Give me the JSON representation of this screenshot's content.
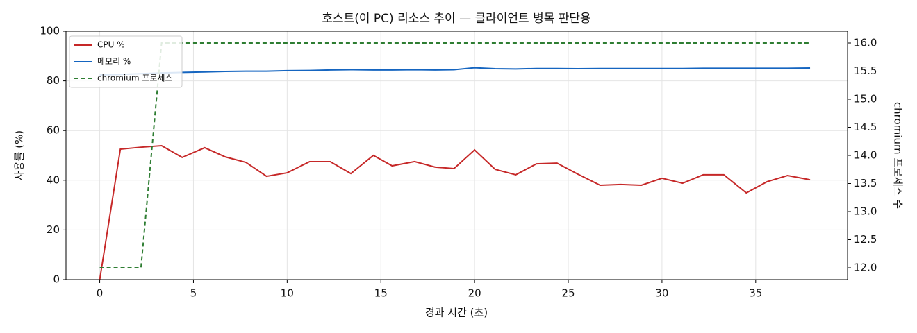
{
  "chart_data": {
    "type": "line",
    "title": "호스트(이 PC) 리소스 추이 — 클라이언트 병목 판단용",
    "xlabel": "경과 시간 (초)",
    "ylabel": "사용률 (%)",
    "y2label": "chromium 프로세스 수",
    "x": [
      0,
      1.1,
      2.2,
      3.3,
      4.4,
      5.6,
      6.7,
      7.8,
      8.9,
      10.0,
      11.2,
      12.3,
      13.4,
      14.6,
      15.6,
      16.8,
      17.9,
      18.9,
      20.0,
      21.1,
      22.2,
      23.3,
      24.4,
      25.5,
      26.7,
      27.8,
      28.9,
      30.0,
      31.1,
      32.2,
      33.3,
      34.5,
      35.6,
      36.7,
      37.9
    ],
    "series": [
      {
        "name": "CPU %",
        "color": "#c62828",
        "linestyle": "solid",
        "values": [
          0,
          52.5,
          53.3,
          53.9,
          49.2,
          53.1,
          49.4,
          47.2,
          41.6,
          43.0,
          47.5,
          47.5,
          42.7,
          50.0,
          45.8,
          47.5,
          45.3,
          44.7,
          52.2,
          44.4,
          42.2,
          46.6,
          46.9,
          42.5,
          38.0,
          38.3,
          38.0,
          40.8,
          38.8,
          42.2,
          42.2,
          34.9,
          39.4,
          41.9,
          40.2
        ]
      },
      {
        "name": "메모리 %",
        "color": "#1565c0",
        "linestyle": "solid",
        "values": [
          82.4,
          82.6,
          82.9,
          83.2,
          83.4,
          83.6,
          83.8,
          83.9,
          83.9,
          84.1,
          84.2,
          84.4,
          84.5,
          84.4,
          84.4,
          84.5,
          84.4,
          84.5,
          85.3,
          84.9,
          84.8,
          85.0,
          85.0,
          84.9,
          85.0,
          85.0,
          85.0,
          85.0,
          85.0,
          85.1,
          85.1,
          85.1,
          85.1,
          85.1,
          85.2
        ]
      },
      {
        "name": "chromium 프로세스",
        "color": "#2e7d32",
        "linestyle": "dashed",
        "axis": "y2",
        "values": [
          12,
          12,
          12,
          16,
          16,
          16,
          16,
          16,
          16,
          16,
          16,
          16,
          16,
          16,
          16,
          16,
          16,
          16,
          16,
          16,
          16,
          16,
          16,
          16,
          16,
          16,
          16,
          16,
          16,
          16,
          16,
          16,
          16,
          16,
          16
        ]
      }
    ],
    "xlim": [
      -1.8,
      39.9
    ],
    "xticks": [
      0,
      5,
      10,
      15,
      20,
      25,
      30,
      35
    ],
    "ylim": [
      0,
      100
    ],
    "yticks": [
      0,
      20,
      40,
      60,
      80,
      100
    ],
    "y2lim": [
      11.79,
      16.21
    ],
    "y2ticks": [
      {
        "value": 12,
        "label": "12.0"
      },
      12.5,
      {
        "value": 13,
        "label": "13.0"
      },
      13.5,
      {
        "value": 14,
        "label": "14.0"
      },
      14.5,
      {
        "value": 15,
        "label": "15.0"
      },
      15.5,
      {
        "value": 16,
        "label": "16.0"
      }
    ],
    "grid": true,
    "legend": "upper left"
  }
}
